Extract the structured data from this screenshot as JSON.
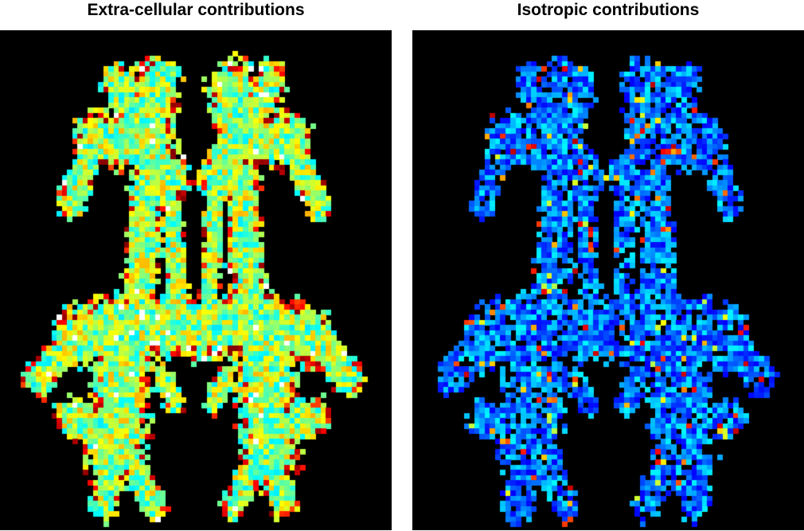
{
  "panels": [
    {
      "title": "Extra-cellular contributions",
      "colormap": "jet",
      "intensity": "high"
    },
    {
      "title": "Isotropic contributions",
      "colormap": "jet",
      "intensity": "low"
    }
  ],
  "colors": {
    "background": "#000000",
    "page": "#ffffff"
  }
}
